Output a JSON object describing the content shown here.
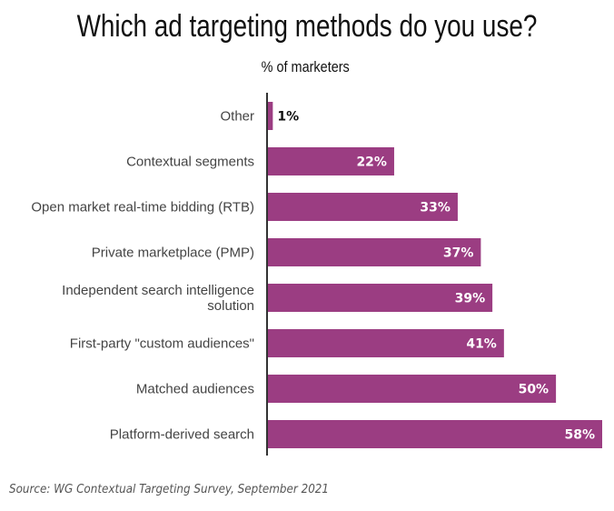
{
  "chart_data": {
    "type": "bar",
    "orientation": "horizontal",
    "title": "Which ad targeting methods do you use?",
    "subtitle": "% of marketers",
    "categories": [
      [
        "Other"
      ],
      [
        "Contextual segments"
      ],
      [
        "Open market real-time bidding (RTB)"
      ],
      [
        "Private marketplace (PMP)"
      ],
      [
        "Independent search intelligence",
        "solution"
      ],
      [
        "First-party \"custom audiences\""
      ],
      [
        "Matched audiences"
      ],
      [
        "Platform-derived search"
      ]
    ],
    "values": [
      1,
      22,
      33,
      37,
      39,
      41,
      50,
      58
    ],
    "value_labels": [
      "1%",
      "22%",
      "33%",
      "37%",
      "39%",
      "41%",
      "50%",
      "58%"
    ],
    "xlim": [
      0,
      58
    ],
    "bar_color": "#9b3d82",
    "source": "Source: WG Contextual Targeting Survey, September 2021"
  }
}
